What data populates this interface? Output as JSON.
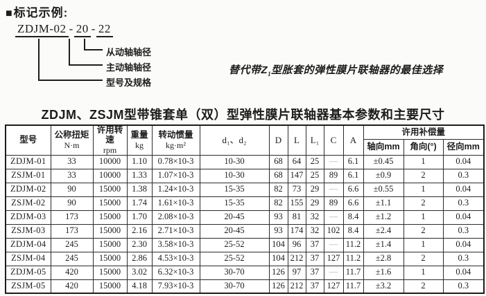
{
  "header": {
    "bullet": "■",
    "section_title": "标记示例:"
  },
  "marking": {
    "code_model": "ZDJM-02",
    "sep": "-",
    "code_driving": "20",
    "code_driven": "22",
    "labels": {
      "driven_shaft": "从动轴轴径",
      "driving_shaft": "主动轴轴径",
      "model_spec": "型号及规格"
    }
  },
  "slogan": {
    "prefix": "替代带Z",
    "subscript": "1",
    "suffix": "型胀套的弹性膜片联轴器的最佳选择"
  },
  "table": {
    "title": "ZDJM、ZSJM型带锥套单（双）型弹性膜片联轴器基本参数和主要尺寸",
    "headers": {
      "model": "型号",
      "torque_name": "公称扭矩",
      "torque_unit": "N·m",
      "speed_name": "许用转速",
      "speed_unit": "rpm",
      "weight_name": "重量",
      "weight_unit": "kg",
      "inertia_name": "转动惯量",
      "inertia_unit": "kg·m²",
      "d": "d₁、d₂",
      "D": "D",
      "L": "L",
      "L1": "L₁",
      "C": "C",
      "A": "A",
      "compensation": "许用补偿量",
      "axial": "轴向mm",
      "angular": "角向(°)",
      "radial": "径向mm"
    },
    "rows": [
      [
        "ZDJM-01",
        "33",
        "10000",
        "1.10",
        "0.78×10-3",
        "10-30",
        "68",
        "64",
        "25",
        "—",
        "6.1",
        "±0.45",
        "1",
        "0.04"
      ],
      [
        "ZSJM-01",
        "33",
        "10000",
        "1.33",
        "1.07×10-3",
        "10-30",
        "68",
        "147",
        "25",
        "89",
        "6.1",
        "±0.9",
        "2",
        "0.3"
      ],
      [
        "ZDJM-02",
        "90",
        "15000",
        "1.38",
        "1.24×10-3",
        "15-35",
        "82",
        "73",
        "29",
        "—",
        "6.6",
        "±0.55",
        "1",
        "0.04"
      ],
      [
        "ZSJM-02",
        "90",
        "15000",
        "1.74",
        "1.61×10-3",
        "15-35",
        "82",
        "155",
        "29",
        "89",
        "6.6",
        "±1.1",
        "2",
        "0.3"
      ],
      [
        "ZDJM-03",
        "173",
        "15000",
        "1.70",
        "2.08×10-3",
        "20-45",
        "93",
        "81",
        "32",
        "—",
        "8.4",
        "±1.2",
        "1",
        "0.04"
      ],
      [
        "ZSJM-03",
        "173",
        "15000",
        "2.16",
        "2.71×10-3",
        "20-45",
        "93",
        "174",
        "32",
        "102",
        "8.4",
        "±2.4",
        "2",
        "0.3"
      ],
      [
        "ZDJM-04",
        "245",
        "15000",
        "2.30",
        "3.58×10-3",
        "25-52",
        "104",
        "96",
        "37",
        "—",
        "11.2",
        "±1.4",
        "1",
        "0.04"
      ],
      [
        "ZSJM-04",
        "245",
        "15000",
        "2.86",
        "4.53×10-3",
        "25-52",
        "104",
        "212",
        "37",
        "127",
        "11.2",
        "±2.8",
        "2",
        "0.3"
      ],
      [
        "ZDJM-05",
        "420",
        "15000",
        "3.02",
        "6.32×10-3",
        "30-70",
        "126",
        "97",
        "37",
        "—",
        "11.7",
        "±1.6",
        "1",
        "0.04"
      ],
      [
        "ZSJM-05",
        "420",
        "15000",
        "4.18",
        "7.93×10-3",
        "30-70",
        "126",
        "212",
        "37",
        "127",
        "11.7",
        "±3.2",
        "2",
        "0.3"
      ]
    ]
  }
}
